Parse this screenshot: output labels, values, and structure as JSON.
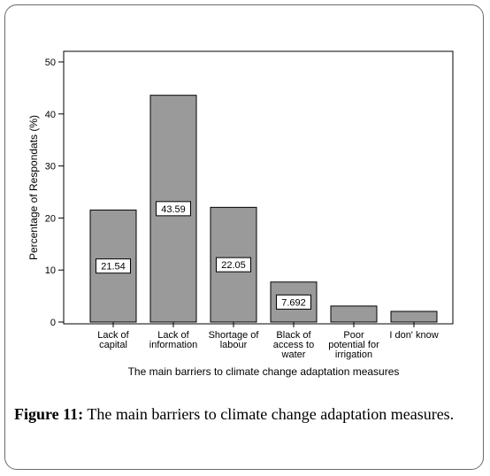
{
  "chart_data": {
    "type": "bar",
    "categories": [
      [
        "Lack of",
        "capital"
      ],
      [
        "Lack of",
        "information"
      ],
      [
        "Shortage of",
        "labour"
      ],
      [
        "Black of",
        "access to",
        "water"
      ],
      [
        "Poor",
        "potential for",
        "irrigation"
      ],
      [
        "I don' know"
      ]
    ],
    "values": [
      21.54,
      43.59,
      22.05,
      7.692,
      3.08,
      2.05
    ],
    "data_labels": [
      "21.54",
      "43.59",
      "22.05",
      "7.692",
      null,
      null
    ],
    "ylabel": "Percentage of Respondats (%)",
    "xlabel": "The main barriers to climate change adaptation measures",
    "ylim": [
      0,
      50
    ],
    "yticks": [
      0,
      10,
      20,
      30,
      40,
      50
    ],
    "bar_color": "#9a9a9a",
    "grid": false
  },
  "caption": {
    "label": "Figure 11:",
    "text": "The main barriers to climate change adaptation measures."
  }
}
